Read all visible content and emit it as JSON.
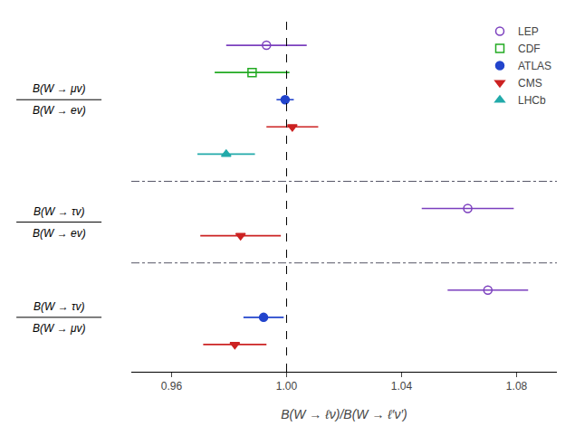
{
  "chart_data": {
    "type": "scatter",
    "xlabel": "B(W → ℓν)/B(W → ℓ′ν′)",
    "xlim": [
      0.946,
      1.094
    ],
    "xticks": [
      0.96,
      {
        "value": 1.0,
        "label": "1.00"
      },
      1.04,
      1.08
    ],
    "reference_x": 1.0,
    "grid": false,
    "legend": "upper right",
    "tick_labels": "x",
    "series": [
      {
        "name": "LEP",
        "color": "#7b3fbe",
        "marker": "circle-open"
      },
      {
        "name": "CDF",
        "color": "#22aa22",
        "marker": "square-open"
      },
      {
        "name": "ATLAS",
        "color": "#2244cc",
        "marker": "circle"
      },
      {
        "name": "CMS",
        "color": "#cc2222",
        "marker": "triangle-down"
      },
      {
        "name": "LHCb",
        "color": "#22aaaa",
        "marker": "triangle-up"
      }
    ],
    "sections": [
      {
        "numerator": "B(W → μv)",
        "denominator": "B(W → ev)",
        "rows": [
          {
            "series": "LEP",
            "x": 0.993,
            "xerr": 0.014
          },
          {
            "series": "CDF",
            "x": 0.988,
            "xerr": 0.013
          },
          {
            "series": "ATLAS",
            "x": 0.9995,
            "xerr": 0.003
          },
          {
            "series": "CMS",
            "x": 1.002,
            "xerr": 0.009
          },
          {
            "series": "LHCb",
            "x": 0.979,
            "xerr": 0.01
          }
        ]
      },
      {
        "numerator": "B(W → τv)",
        "denominator": "B(W → ev)",
        "rows": [
          {
            "series": "LEP",
            "x": 1.063,
            "xerr": 0.016
          },
          {
            "series": "CMS",
            "x": 0.984,
            "xerr": 0.014
          }
        ]
      },
      {
        "numerator": "B(W → τv)",
        "denominator": "B(W → μv)",
        "rows": [
          {
            "series": "LEP",
            "x": 1.07,
            "xerr": 0.014
          },
          {
            "series": "ATLAS",
            "x": 0.992,
            "xerr": 0.007
          },
          {
            "series": "CMS",
            "x": 0.982,
            "xerr": 0.011
          }
        ]
      }
    ]
  }
}
